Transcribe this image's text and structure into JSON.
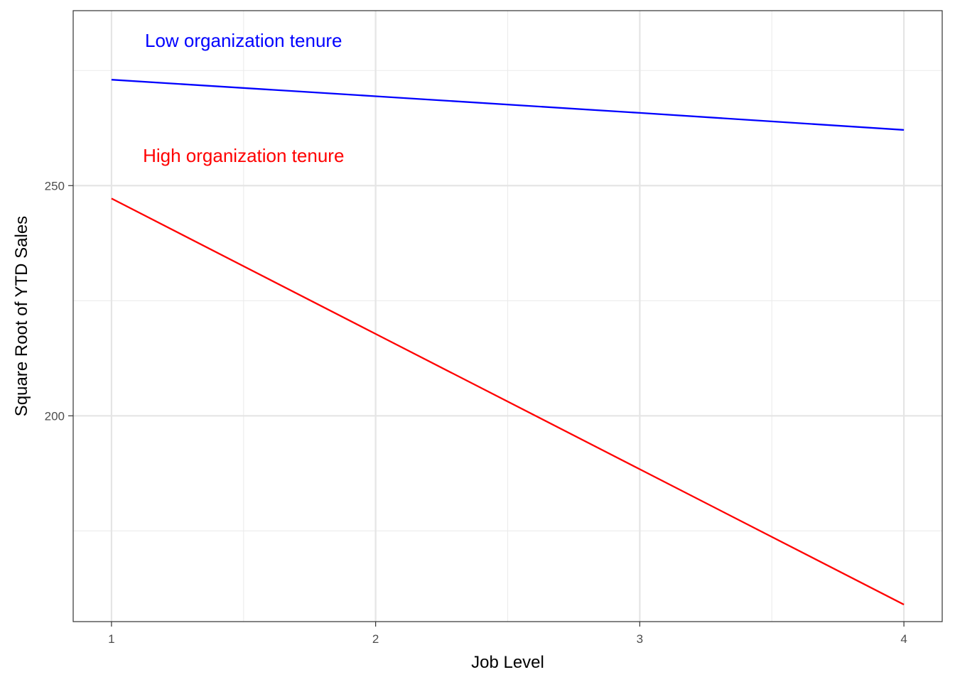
{
  "chart_data": {
    "type": "line",
    "title": "",
    "xlabel": "Job Level",
    "ylabel": "Square Root of YTD Sales",
    "x": [
      1,
      2,
      3,
      4
    ],
    "x_ticks": [
      1,
      2,
      3,
      4
    ],
    "y_ticks": [
      200,
      250
    ],
    "xlim": [
      0.855,
      4.145
    ],
    "ylim": [
      155.3,
      288.0
    ],
    "grid": true,
    "legend": "none",
    "series": [
      {
        "name": "Low organization tenure",
        "color": "#0000ff",
        "values": [
          273.0,
          269.4,
          265.8,
          262.1
        ]
      },
      {
        "name": "High organization tenure",
        "color": "#ff0000",
        "values": [
          247.2,
          217.8,
          188.4,
          159.0
        ]
      }
    ],
    "annotations": [
      {
        "text": "Low organization tenure",
        "x": 1.5,
        "y": 281.5,
        "color": "#0000ff"
      },
      {
        "text": "High organization tenure",
        "x": 1.5,
        "y": 256.5,
        "color": "#ff0000"
      }
    ]
  }
}
